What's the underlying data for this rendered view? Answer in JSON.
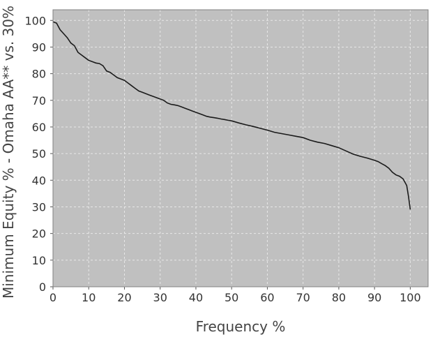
{
  "chart_data": {
    "type": "line",
    "title": "",
    "xlabel": "Frequency %",
    "ylabel": "Minimum Equity % - Omaha AA** vs. 30%",
    "xlim": [
      0,
      105
    ],
    "ylim": [
      0,
      104
    ],
    "x_ticks": [
      "0",
      "10",
      "20",
      "30",
      "40",
      "50",
      "60",
      "70",
      "80",
      "90",
      "100"
    ],
    "y_ticks": [
      "0",
      "10",
      "20",
      "30",
      "40",
      "50",
      "60",
      "70",
      "80",
      "90",
      "100"
    ],
    "grid": true,
    "legend": "none",
    "colors": {
      "plot_background": "#c0c0c0",
      "line": "#1a1a1a",
      "grid": "#e8e8e8",
      "frame": "#808080"
    },
    "series": [
      {
        "x": [
          0,
          1,
          2,
          3,
          4,
          5,
          6,
          7,
          8,
          9,
          10,
          11,
          12,
          13,
          14,
          15,
          16,
          17,
          18,
          19,
          20,
          21,
          22,
          23,
          24,
          25,
          26,
          27,
          28,
          29,
          30,
          31,
          32,
          33,
          34,
          35,
          36,
          37,
          38,
          39,
          40,
          41,
          42,
          43,
          44,
          45,
          46,
          47,
          48,
          49,
          50,
          52,
          54,
          56,
          58,
          60,
          62,
          64,
          66,
          68,
          70,
          72,
          74,
          76,
          78,
          80,
          82,
          84,
          86,
          88,
          90,
          91,
          92,
          93,
          94,
          95,
          96,
          97,
          98,
          99,
          99.5,
          100
        ],
        "y": [
          99.5,
          99,
          96.5,
          95,
          93.5,
          91.5,
          90.5,
          88,
          87,
          86,
          85,
          84.5,
          84,
          83.8,
          83,
          81,
          80.5,
          79.5,
          78.5,
          78,
          77.5,
          76.5,
          75.5,
          74.5,
          73.5,
          73,
          72.5,
          72,
          71.5,
          71,
          70.5,
          70,
          69,
          68.5,
          68.3,
          68,
          67.5,
          67,
          66.5,
          66,
          65.5,
          65,
          64.5,
          64,
          63.7,
          63.5,
          63.3,
          63,
          62.8,
          62.5,
          62.3,
          61.5,
          60.8,
          60.2,
          59.5,
          58.8,
          58,
          57.5,
          57,
          56.5,
          56,
          55,
          54.3,
          53.8,
          53,
          52.2,
          51,
          49.8,
          49,
          48.3,
          47.5,
          47,
          46.2,
          45.5,
          44.5,
          43,
          42,
          41.5,
          40.5,
          38,
          34,
          29
        ]
      }
    ]
  }
}
